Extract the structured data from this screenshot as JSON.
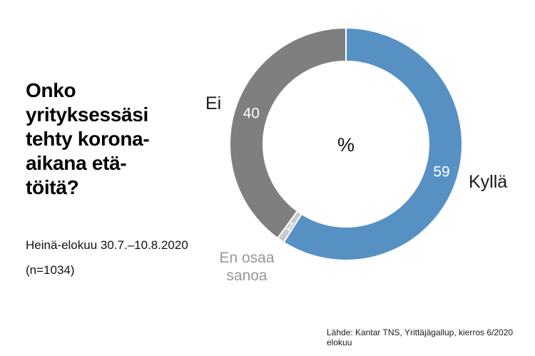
{
  "question": {
    "title": "Onko\nyrityksessäsi\ntehty korona-\naikana etä-\ntöitä?",
    "period": "Heinä-elokuu 30.7.–10.8.2020",
    "sample": "(n=1034)"
  },
  "footer": {
    "source": "Lähde: Kantar TNS, Yrittäjägallup, kierros 6/2020 elokuu"
  },
  "chart_data": {
    "type": "pie",
    "subtype": "donut",
    "title": "Onko yrityksessäsi tehty korona-aikana etätöitä?",
    "unit": "%",
    "center_label": "%",
    "categories": [
      "Kyllä",
      "En osaa sanoa",
      "Ei"
    ],
    "values": [
      59,
      1,
      40
    ],
    "colors": [
      "#5791c4",
      "#c9c9c9",
      "#7f7f7f"
    ],
    "value_label_color": "#ffffff",
    "start_angle_deg": 0,
    "direction": "clockwise",
    "inner_radius_ratio": 0.71,
    "legend_position": "around-donut",
    "grid": false
  }
}
